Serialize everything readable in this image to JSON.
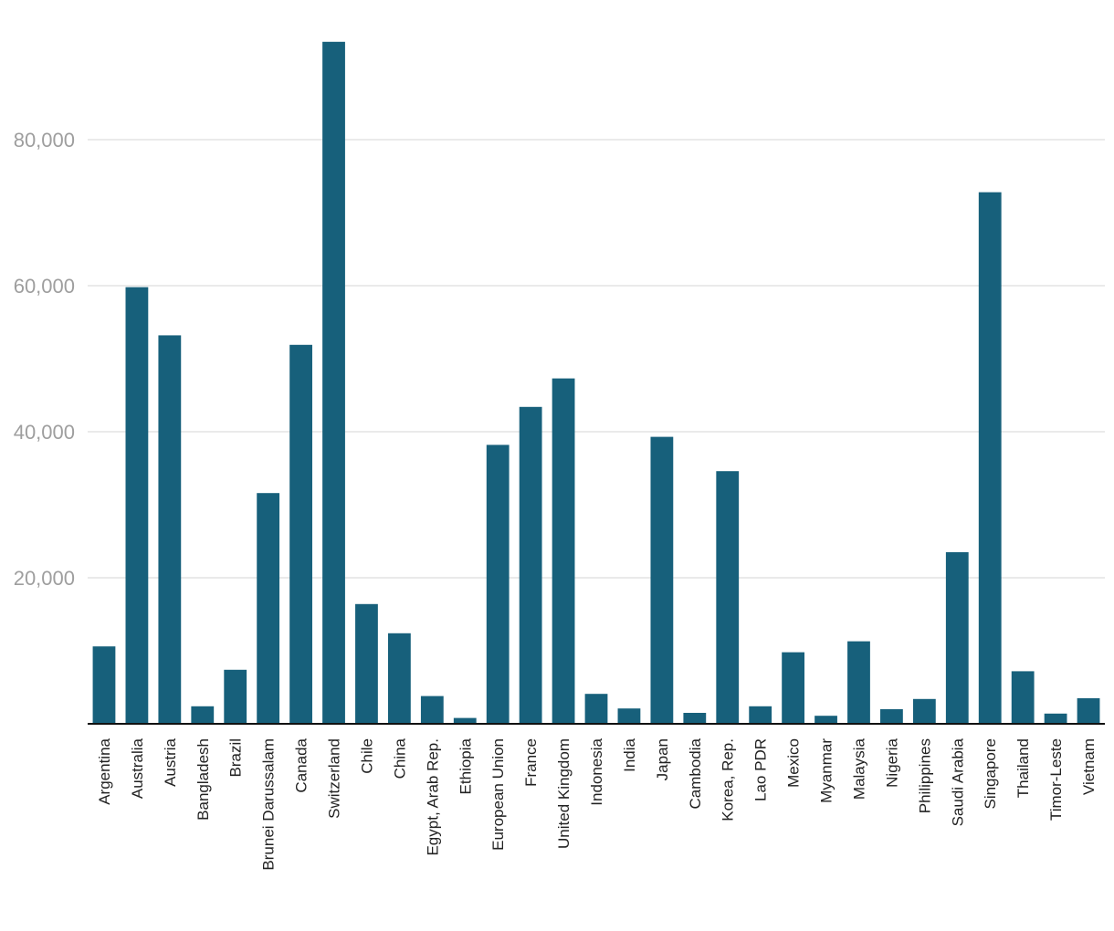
{
  "chart_data": {
    "type": "bar",
    "categories": [
      "Argentina",
      "Australia",
      "Austria",
      "Bangladesh",
      "Brazil",
      "Brunei Darussalam",
      "Canada",
      "Switzerland",
      "Chile",
      "China",
      "Egypt, Arab Rep.",
      "Ethiopia",
      "European Union",
      "France",
      "United Kingdom",
      "Indonesia",
      "India",
      "Japan",
      "Cambodia",
      "Korea, Rep.",
      "Lao PDR",
      "Mexico",
      "Myanmar",
      "Malaysia",
      "Nigeria",
      "Philippines",
      "Saudi Arabia",
      "Singapore",
      "Thailand",
      "Timor-Leste",
      "Vietnam"
    ],
    "values": [
      10600,
      59800,
      53200,
      2400,
      7400,
      31600,
      51900,
      93400,
      16400,
      12400,
      3800,
      800,
      38200,
      43400,
      47300,
      4100,
      2100,
      39300,
      1500,
      34600,
      2400,
      9800,
      1100,
      11300,
      2000,
      3400,
      23500,
      72800,
      7200,
      1400,
      3500
    ],
    "title": "",
    "xlabel": "",
    "ylabel": "",
    "ylim": [
      0,
      93500
    ],
    "yticks": [
      20000,
      40000,
      60000,
      80000
    ],
    "ytick_labels": [
      "20,000",
      "40,000",
      "60,000",
      "80,000"
    ],
    "grid": true,
    "bar_color": "#17607b"
  }
}
